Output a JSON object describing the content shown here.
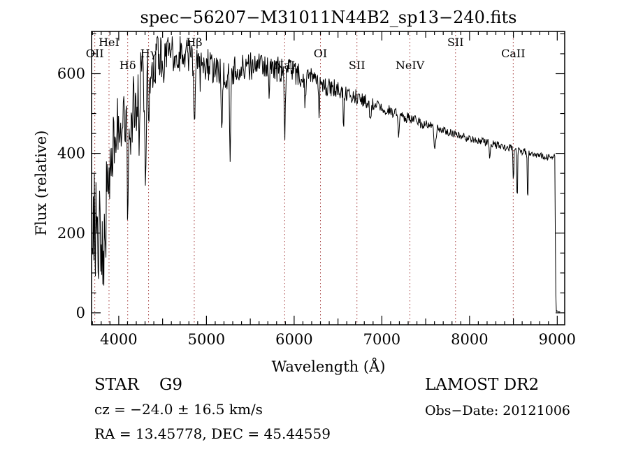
{
  "title": "spec−56207−M31011N44B2_sp13−240.fits",
  "chart_data": {
    "type": "line",
    "title": "spec−56207−M31011N44B2_sp13−240.fits",
    "xlabel": "Wavelength (Å)",
    "ylabel": "Flux (relative)",
    "xlim": [
      3690,
      9085
    ],
    "ylim": [
      -30,
      706
    ],
    "x_ticks": [
      4000,
      5000,
      6000,
      7000,
      8000,
      9000
    ],
    "y_ticks": [
      0,
      200,
      400,
      600
    ],
    "x_minor_step": 100,
    "x_medium_step": 500,
    "y_minor_step": 50,
    "grid": false,
    "line_color": "#000000",
    "feature_line_color": "#9e3030",
    "features": [
      {
        "label": "OII",
        "wavelength": 3727,
        "row": "mid"
      },
      {
        "label": "HeI",
        "wavelength": 3889,
        "row": "top"
      },
      {
        "label": "Hδ",
        "wavelength": 4102,
        "row": "bottom"
      },
      {
        "label": "Hγ",
        "wavelength": 4340,
        "row": "mid"
      },
      {
        "label": "Hβ",
        "wavelength": 4861,
        "row": "top"
      },
      {
        "label": "NaI",
        "wavelength": 5892,
        "row": "bottom"
      },
      {
        "label": "OI",
        "wavelength": 6300,
        "row": "mid"
      },
      {
        "label": "SII",
        "wavelength": 6716,
        "row": "bottom"
      },
      {
        "label": "NeIV",
        "wavelength": 7320,
        "row": "bottom"
      },
      {
        "label": "SII",
        "wavelength": 7840,
        "row": "top"
      },
      {
        "label": "CaII",
        "wavelength": 8498,
        "row": "mid"
      }
    ],
    "data_range": [
      3698,
      9032
    ],
    "sample_step": 6,
    "noise_seed": 20121006,
    "envelope": [
      [
        3700,
        120
      ],
      [
        3715,
        260
      ],
      [
        3730,
        120
      ],
      [
        3750,
        230
      ],
      [
        3770,
        140
      ],
      [
        3800,
        210
      ],
      [
        3830,
        160
      ],
      [
        3860,
        260
      ],
      [
        3900,
        330
      ],
      [
        3950,
        430
      ],
      [
        4000,
        470
      ],
      [
        4060,
        480
      ],
      [
        4120,
        470
      ],
      [
        4180,
        520
      ],
      [
        4260,
        580
      ],
      [
        4350,
        610
      ],
      [
        4450,
        640
      ],
      [
        4550,
        650
      ],
      [
        4700,
        650
      ],
      [
        4850,
        640
      ],
      [
        5000,
        625
      ],
      [
        5150,
        610
      ],
      [
        5300,
        605
      ],
      [
        5450,
        618
      ],
      [
        5600,
        620
      ],
      [
        5750,
        615
      ],
      [
        5900,
        605
      ],
      [
        6050,
        598
      ],
      [
        6200,
        585
      ],
      [
        6350,
        572
      ],
      [
        6500,
        560
      ],
      [
        6650,
        548
      ],
      [
        6800,
        532
      ],
      [
        6950,
        520
      ],
      [
        7100,
        506
      ],
      [
        7250,
        492
      ],
      [
        7400,
        480
      ],
      [
        7550,
        468
      ],
      [
        7700,
        456
      ],
      [
        7850,
        446
      ],
      [
        8000,
        438
      ],
      [
        8150,
        430
      ],
      [
        8300,
        422
      ],
      [
        8450,
        414
      ],
      [
        8600,
        405
      ],
      [
        8750,
        398
      ],
      [
        8900,
        390
      ],
      [
        8955,
        387
      ],
      [
        8963,
        396
      ],
      [
        8972,
        390
      ],
      [
        8982,
        60
      ],
      [
        8990,
        4
      ],
      [
        9030,
        3
      ]
    ],
    "noise_amplitude": [
      [
        3700,
        165
      ],
      [
        3780,
        140
      ],
      [
        3850,
        125
      ],
      [
        3950,
        95
      ],
      [
        4100,
        90
      ],
      [
        4250,
        85
      ],
      [
        4400,
        60
      ],
      [
        4600,
        45
      ],
      [
        4800,
        45
      ],
      [
        5000,
        42
      ],
      [
        5200,
        48
      ],
      [
        5400,
        38
      ],
      [
        5600,
        32
      ],
      [
        5800,
        32
      ],
      [
        6000,
        34
      ],
      [
        6200,
        30
      ],
      [
        6400,
        26
      ],
      [
        6600,
        22
      ],
      [
        6800,
        17
      ],
      [
        7000,
        15
      ],
      [
        7200,
        14
      ],
      [
        7500,
        13
      ],
      [
        7800,
        11
      ],
      [
        8100,
        10
      ],
      [
        8400,
        10
      ],
      [
        8700,
        9
      ],
      [
        8950,
        8
      ],
      [
        8985,
        3
      ],
      [
        9030,
        2
      ]
    ],
    "absorption_dips": [
      [
        4105,
        250,
        10
      ],
      [
        4230,
        140,
        8
      ],
      [
        4305,
        300,
        14
      ],
      [
        4342,
        170,
        8
      ],
      [
        4510,
        60,
        8
      ],
      [
        4864,
        185,
        10
      ],
      [
        4930,
        60,
        8
      ],
      [
        5175,
        175,
        12
      ],
      [
        5270,
        245,
        10
      ],
      [
        5715,
        60,
        8
      ],
      [
        5893,
        140,
        10
      ],
      [
        6125,
        60,
        8
      ],
      [
        6285,
        70,
        8
      ],
      [
        6565,
        85,
        8
      ],
      [
        6870,
        55,
        10
      ],
      [
        7190,
        45,
        12
      ],
      [
        7605,
        55,
        15
      ],
      [
        8230,
        40,
        8
      ],
      [
        8500,
        90,
        6
      ],
      [
        8543,
        130,
        6
      ],
      [
        8663,
        130,
        6
      ]
    ]
  },
  "annotations": {
    "class_label": "STAR",
    "subclass_label": "G9",
    "survey": "LAMOST DR2",
    "cz_line": "cz = −24.0 ± 16.5 km/s",
    "obs_date_line": "Obs−Date: 20121006",
    "radec_line": "RA =  13.45778, DEC =  45.44559"
  }
}
